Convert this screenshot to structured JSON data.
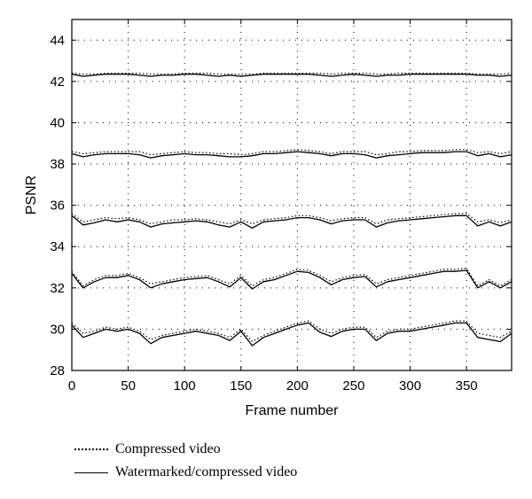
{
  "chart_data": {
    "type": "line",
    "xlabel": "Frame number",
    "ylabel": "PSNR",
    "xlim": [
      0,
      390
    ],
    "ylim": [
      28,
      45
    ],
    "xticks": [
      0,
      50,
      100,
      150,
      200,
      250,
      300,
      350
    ],
    "yticks": [
      28,
      30,
      32,
      34,
      36,
      38,
      40,
      42,
      44
    ],
    "grid": true,
    "legend_placement": "bottom-left",
    "legend": [
      {
        "label": "Compressed video",
        "style": "dotted"
      },
      {
        "label": "Watermarked/compressed video",
        "style": "solid"
      }
    ],
    "series": [
      {
        "group": "level-1",
        "style": "dotted",
        "x": [
          0,
          10,
          20,
          30,
          40,
          50,
          60,
          70,
          80,
          90,
          100,
          110,
          120,
          130,
          140,
          150,
          160,
          170,
          180,
          190,
          200,
          210,
          220,
          230,
          240,
          250,
          260,
          270,
          280,
          290,
          300,
          310,
          320,
          330,
          340,
          350,
          360,
          370,
          380,
          390
        ],
        "values": [
          42.4,
          42.35,
          42.35,
          42.4,
          42.4,
          42.4,
          42.4,
          42.35,
          42.35,
          42.35,
          42.4,
          42.4,
          42.4,
          42.35,
          42.35,
          42.35,
          42.35,
          42.4,
          42.4,
          42.4,
          42.4,
          42.4,
          42.4,
          42.35,
          42.4,
          42.4,
          42.4,
          42.35,
          42.35,
          42.4,
          42.4,
          42.4,
          42.4,
          42.4,
          42.4,
          42.4,
          42.35,
          42.35,
          42.35,
          42.4
        ]
      },
      {
        "group": "level-1",
        "style": "solid",
        "x": [
          0,
          10,
          20,
          30,
          40,
          50,
          60,
          70,
          80,
          90,
          100,
          110,
          120,
          130,
          140,
          150,
          160,
          170,
          180,
          190,
          200,
          210,
          220,
          230,
          240,
          250,
          260,
          270,
          280,
          290,
          300,
          310,
          320,
          330,
          340,
          350,
          360,
          370,
          380,
          390
        ],
        "values": [
          42.35,
          42.25,
          42.3,
          42.35,
          42.35,
          42.35,
          42.3,
          42.25,
          42.3,
          42.3,
          42.35,
          42.35,
          42.3,
          42.25,
          42.3,
          42.25,
          42.3,
          42.35,
          42.35,
          42.35,
          42.35,
          42.35,
          42.3,
          42.25,
          42.3,
          42.35,
          42.3,
          42.25,
          42.3,
          42.3,
          42.35,
          42.35,
          42.35,
          42.35,
          42.35,
          42.35,
          42.3,
          42.3,
          42.25,
          42.3
        ]
      },
      {
        "group": "level-2",
        "style": "dotted",
        "x": [
          0,
          10,
          20,
          30,
          40,
          50,
          60,
          70,
          80,
          90,
          100,
          110,
          120,
          130,
          140,
          150,
          160,
          170,
          180,
          190,
          200,
          210,
          220,
          230,
          240,
          250,
          260,
          270,
          280,
          290,
          300,
          310,
          320,
          330,
          340,
          350,
          360,
          370,
          380,
          390
        ],
        "values": [
          38.6,
          38.5,
          38.55,
          38.6,
          38.6,
          38.6,
          38.6,
          38.45,
          38.5,
          38.55,
          38.6,
          38.55,
          38.55,
          38.5,
          38.5,
          38.45,
          38.5,
          38.6,
          38.6,
          38.65,
          38.7,
          38.65,
          38.6,
          38.5,
          38.6,
          38.6,
          38.6,
          38.45,
          38.5,
          38.6,
          38.6,
          38.65,
          38.65,
          38.65,
          38.7,
          38.7,
          38.55,
          38.6,
          38.5,
          38.6
        ]
      },
      {
        "group": "level-2",
        "style": "solid",
        "x": [
          0,
          10,
          20,
          30,
          40,
          50,
          60,
          70,
          80,
          90,
          100,
          110,
          120,
          130,
          140,
          150,
          160,
          170,
          180,
          190,
          200,
          210,
          220,
          230,
          240,
          250,
          260,
          270,
          280,
          290,
          300,
          310,
          320,
          330,
          340,
          350,
          360,
          370,
          380,
          390
        ],
        "values": [
          38.5,
          38.35,
          38.45,
          38.5,
          38.5,
          38.5,
          38.45,
          38.3,
          38.4,
          38.45,
          38.5,
          38.45,
          38.45,
          38.4,
          38.35,
          38.35,
          38.4,
          38.5,
          38.5,
          38.55,
          38.6,
          38.55,
          38.5,
          38.4,
          38.5,
          38.5,
          38.45,
          38.3,
          38.4,
          38.45,
          38.5,
          38.55,
          38.55,
          38.55,
          38.6,
          38.6,
          38.4,
          38.5,
          38.35,
          38.45
        ]
      },
      {
        "group": "level-3",
        "style": "dotted",
        "x": [
          0,
          10,
          20,
          30,
          40,
          50,
          60,
          70,
          80,
          90,
          100,
          110,
          120,
          130,
          140,
          150,
          160,
          170,
          180,
          190,
          200,
          210,
          220,
          230,
          240,
          250,
          260,
          270,
          280,
          290,
          300,
          310,
          320,
          330,
          340,
          350,
          360,
          370,
          380,
          390
        ],
        "values": [
          35.6,
          35.2,
          35.3,
          35.4,
          35.35,
          35.4,
          35.3,
          35.1,
          35.2,
          35.3,
          35.3,
          35.35,
          35.3,
          35.2,
          35.1,
          35.3,
          35.1,
          35.3,
          35.35,
          35.4,
          35.5,
          35.5,
          35.4,
          35.25,
          35.35,
          35.4,
          35.4,
          35.1,
          35.3,
          35.35,
          35.4,
          35.45,
          35.5,
          35.55,
          35.6,
          35.6,
          35.2,
          35.3,
          35.15,
          35.3
        ]
      },
      {
        "group": "level-3",
        "style": "solid",
        "x": [
          0,
          10,
          20,
          30,
          40,
          50,
          60,
          70,
          80,
          90,
          100,
          110,
          120,
          130,
          140,
          150,
          160,
          170,
          180,
          190,
          200,
          210,
          220,
          230,
          240,
          250,
          260,
          270,
          280,
          290,
          300,
          310,
          320,
          330,
          340,
          350,
          360,
          370,
          380,
          390
        ],
        "values": [
          35.5,
          35.05,
          35.15,
          35.3,
          35.2,
          35.3,
          35.2,
          34.95,
          35.1,
          35.15,
          35.2,
          35.25,
          35.2,
          35.05,
          34.95,
          35.2,
          34.9,
          35.2,
          35.25,
          35.3,
          35.4,
          35.4,
          35.3,
          35.1,
          35.25,
          35.3,
          35.3,
          34.95,
          35.15,
          35.25,
          35.3,
          35.35,
          35.4,
          35.45,
          35.5,
          35.5,
          35.0,
          35.2,
          35.0,
          35.2
        ]
      },
      {
        "group": "level-4",
        "style": "dotted",
        "x": [
          0,
          10,
          20,
          30,
          40,
          50,
          60,
          70,
          80,
          90,
          100,
          110,
          120,
          130,
          140,
          150,
          160,
          170,
          180,
          190,
          200,
          210,
          220,
          230,
          240,
          250,
          260,
          270,
          280,
          290,
          300,
          310,
          320,
          330,
          340,
          350,
          360,
          370,
          380,
          390
        ],
        "values": [
          32.8,
          32.1,
          32.4,
          32.6,
          32.6,
          32.7,
          32.5,
          32.2,
          32.3,
          32.4,
          32.5,
          32.55,
          32.6,
          32.4,
          32.2,
          32.6,
          32.1,
          32.4,
          32.5,
          32.7,
          32.9,
          32.85,
          32.6,
          32.3,
          32.5,
          32.6,
          32.65,
          32.2,
          32.4,
          32.5,
          32.6,
          32.7,
          32.8,
          32.9,
          32.9,
          32.95,
          32.1,
          32.4,
          32.1,
          32.4
        ]
      },
      {
        "group": "level-4",
        "style": "solid",
        "x": [
          0,
          10,
          20,
          30,
          40,
          50,
          60,
          70,
          80,
          90,
          100,
          110,
          120,
          130,
          140,
          150,
          160,
          170,
          180,
          190,
          200,
          210,
          220,
          230,
          240,
          250,
          260,
          270,
          280,
          290,
          300,
          310,
          320,
          330,
          340,
          350,
          360,
          370,
          380,
          390
        ],
        "values": [
          32.7,
          32.0,
          32.3,
          32.5,
          32.5,
          32.6,
          32.4,
          32.0,
          32.2,
          32.3,
          32.4,
          32.45,
          32.5,
          32.3,
          32.05,
          32.5,
          31.95,
          32.3,
          32.4,
          32.6,
          32.8,
          32.75,
          32.5,
          32.15,
          32.4,
          32.5,
          32.55,
          32.05,
          32.3,
          32.4,
          32.5,
          32.6,
          32.7,
          32.8,
          32.8,
          32.85,
          32.0,
          32.3,
          32.0,
          32.3
        ]
      },
      {
        "group": "level-5",
        "style": "dotted",
        "x": [
          0,
          10,
          20,
          30,
          40,
          50,
          60,
          70,
          80,
          90,
          100,
          110,
          120,
          130,
          140,
          150,
          160,
          170,
          180,
          190,
          200,
          210,
          220,
          230,
          240,
          250,
          260,
          270,
          280,
          290,
          300,
          310,
          320,
          330,
          340,
          350,
          360,
          370,
          380,
          390
        ],
        "values": [
          30.3,
          29.8,
          29.9,
          30.1,
          30.0,
          30.1,
          29.9,
          29.5,
          29.7,
          29.8,
          29.9,
          30.0,
          29.9,
          29.8,
          29.6,
          30.0,
          29.4,
          29.7,
          29.9,
          30.1,
          30.3,
          30.4,
          30.0,
          29.8,
          30.0,
          30.1,
          30.1,
          29.6,
          29.9,
          30.0,
          30.0,
          30.1,
          30.2,
          30.3,
          30.4,
          30.4,
          29.8,
          29.7,
          29.6,
          29.9
        ]
      },
      {
        "group": "level-5",
        "style": "solid",
        "x": [
          0,
          10,
          20,
          30,
          40,
          50,
          60,
          70,
          80,
          90,
          100,
          110,
          120,
          130,
          140,
          150,
          160,
          170,
          180,
          190,
          200,
          210,
          220,
          230,
          240,
          250,
          260,
          270,
          280,
          290,
          300,
          310,
          320,
          330,
          340,
          350,
          360,
          370,
          380,
          390
        ],
        "values": [
          30.2,
          29.6,
          29.8,
          30.0,
          29.9,
          30.0,
          29.8,
          29.3,
          29.6,
          29.7,
          29.8,
          29.9,
          29.8,
          29.7,
          29.45,
          29.9,
          29.2,
          29.6,
          29.8,
          30.0,
          30.2,
          30.3,
          29.85,
          29.65,
          29.9,
          30.0,
          30.0,
          29.45,
          29.8,
          29.9,
          29.9,
          30.0,
          30.1,
          30.2,
          30.3,
          30.3,
          29.6,
          29.5,
          29.4,
          29.8
        ]
      }
    ]
  }
}
